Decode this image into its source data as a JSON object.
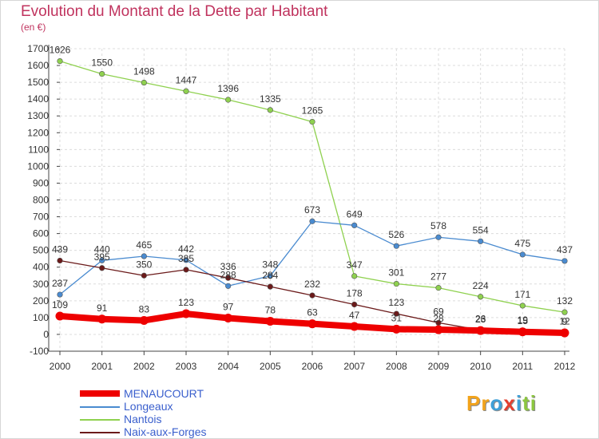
{
  "header": {
    "title": "Evolution du Montant de la Dette par Habitant",
    "subtitle": "(en €)"
  },
  "logo": {
    "text": "Proxiti"
  },
  "chart_data": {
    "type": "line",
    "title": "Evolution du Montant de la Dette par Habitant",
    "subtitle": "(en €)",
    "x": [
      "2000",
      "2001",
      "2002",
      "2003",
      "2004",
      "2005",
      "2006",
      "2007",
      "2008",
      "2009",
      "2010",
      "2011",
      "2012"
    ],
    "ylim": [
      -100,
      1700
    ],
    "yticks": [
      -100,
      0,
      100,
      200,
      300,
      400,
      500,
      600,
      700,
      800,
      900,
      1000,
      1100,
      1200,
      1300,
      1400,
      1500,
      1600,
      1700
    ],
    "grid": true,
    "legend_position": "bottom-left",
    "series": [
      {
        "name": "Nantois",
        "color": "#8fd14f",
        "values": [
          1626,
          1550,
          1498,
          1447,
          1396,
          1335,
          1265,
          347,
          301,
          277,
          224,
          171,
          132
        ]
      },
      {
        "name": "Longeaux",
        "color": "#4a8bd0",
        "values": [
          237,
          440,
          465,
          442,
          288,
          348,
          673,
          649,
          526,
          578,
          554,
          475,
          437
        ]
      },
      {
        "name": "Naix-aux-Forges",
        "color": "#6b1a1a",
        "values": [
          439,
          395,
          350,
          385,
          336,
          284,
          232,
          178,
          123,
          69,
          26,
          19,
          12
        ]
      },
      {
        "name": "MENAUCOURT",
        "color": "#ee0000",
        "values": [
          109,
          91,
          83,
          123,
          97,
          78,
          63,
          47,
          31,
          28,
          23,
          15,
          9
        ]
      }
    ],
    "legend_order": [
      "MENAUCOURT",
      "Longeaux",
      "Nantois",
      "Naix-aux-Forges"
    ]
  }
}
